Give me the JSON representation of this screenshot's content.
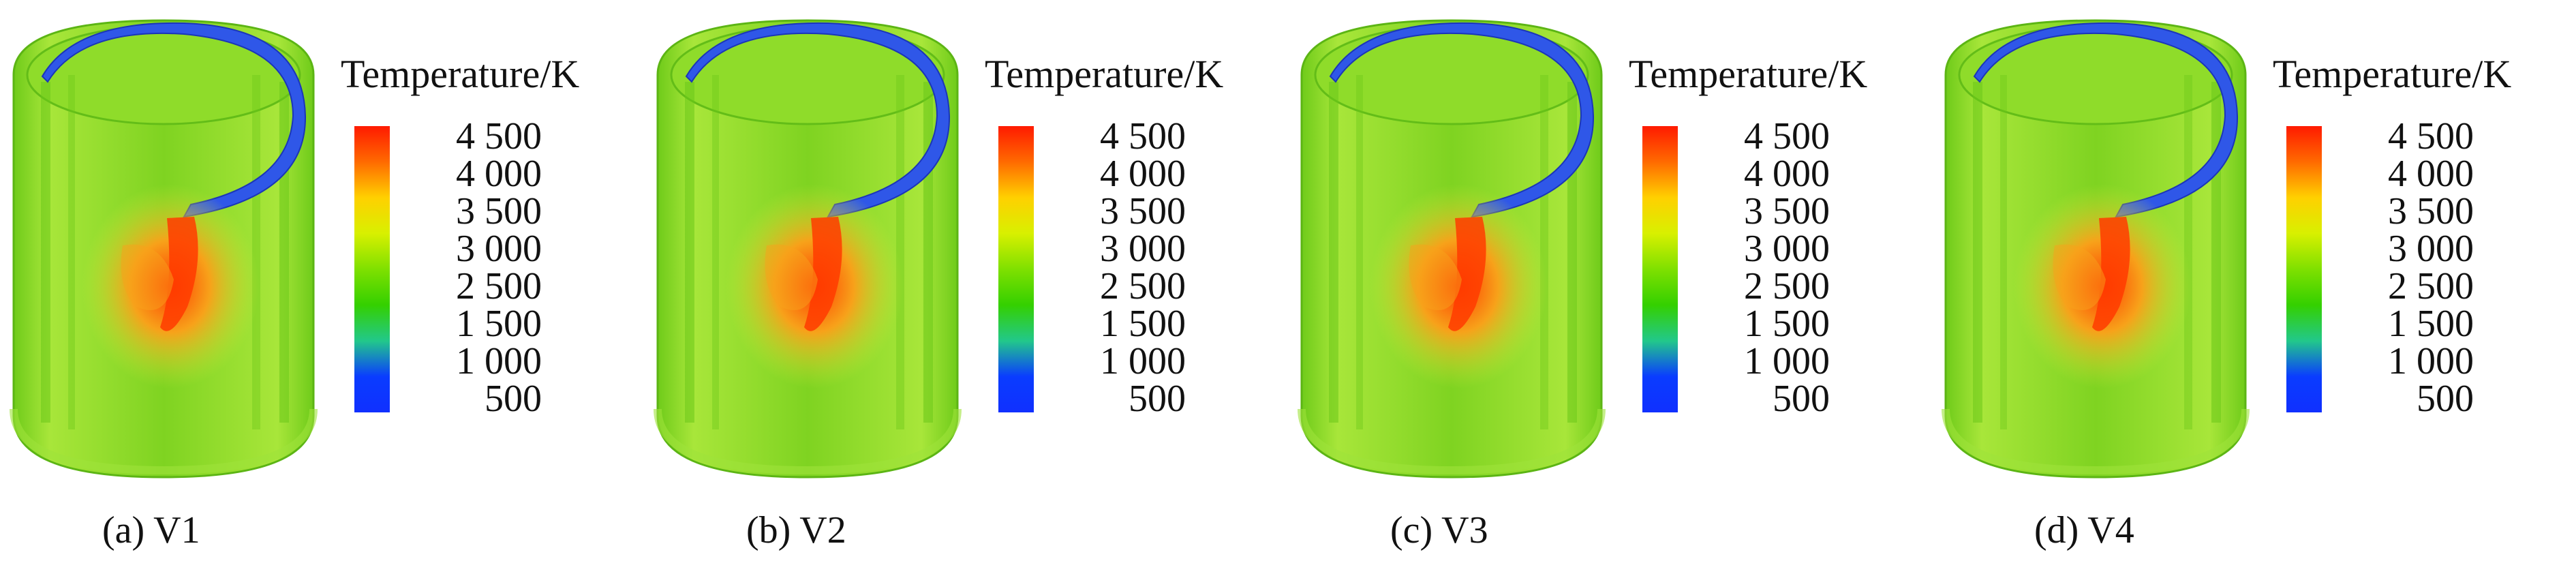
{
  "panels": [
    {
      "caption": "(a) V1",
      "legend_title": "Temperature/K"
    },
    {
      "caption": "(b) V2",
      "legend_title": "Temperature/K"
    },
    {
      "caption": "(c) V3",
      "legend_title": "Temperature/K"
    },
    {
      "caption": "(d) V4",
      "legend_title": "Temperature/K"
    }
  ],
  "colorbar": {
    "tick_labels": [
      "4 500",
      "4 000",
      "3 500",
      "3 000",
      "2 500",
      "1 500",
      "1 000",
      "500"
    ],
    "stops": [
      "#ff1a00",
      "#ff6a00",
      "#ffd000",
      "#d8f000",
      "#7fe000",
      "#34d000",
      "#22c88a",
      "#0a3cff",
      "#1030ff"
    ],
    "colors": {
      "hot": "#ff3b00",
      "warm": "#f7a21a",
      "body": "#7fd321",
      "light": "#a8e63a",
      "cold_band": "#2f57e8"
    }
  }
}
